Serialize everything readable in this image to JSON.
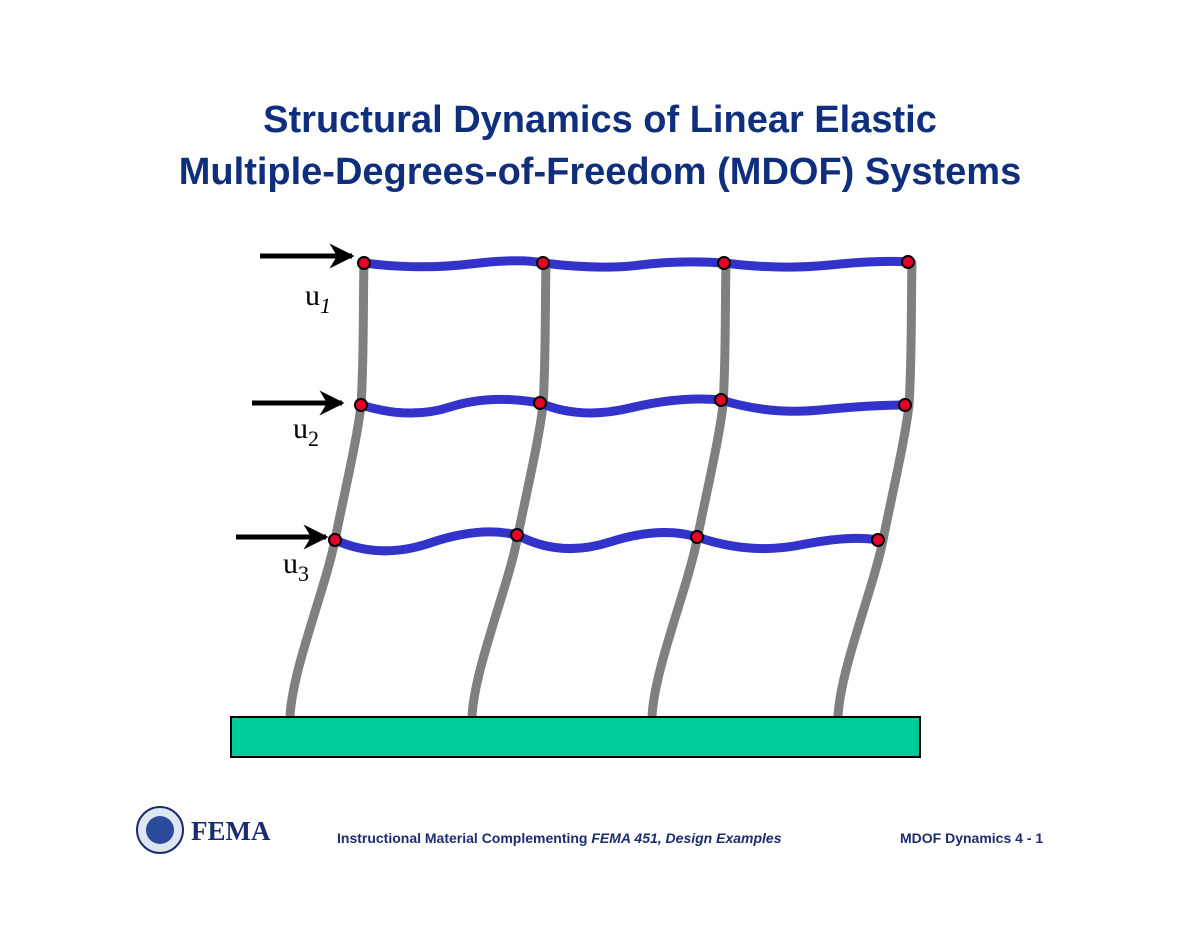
{
  "header": {
    "title_lines": [
      "Structural Dynamics of Linear Elastic",
      "Multiple-Degrees-of-Freedom (MDOF) Systems"
    ]
  },
  "diagram": {
    "labels": [
      {
        "base": "u",
        "sub": "1"
      },
      {
        "base": "u",
        "sub": "2"
      },
      {
        "base": "u",
        "sub": "3"
      }
    ]
  },
  "footer": {
    "logo": "FEMA",
    "note_prefix": "Instructional Material Complementing ",
    "note_italic": "FEMA 451, Design Examples",
    "page": "MDOF Dynamics 4 - 1"
  }
}
